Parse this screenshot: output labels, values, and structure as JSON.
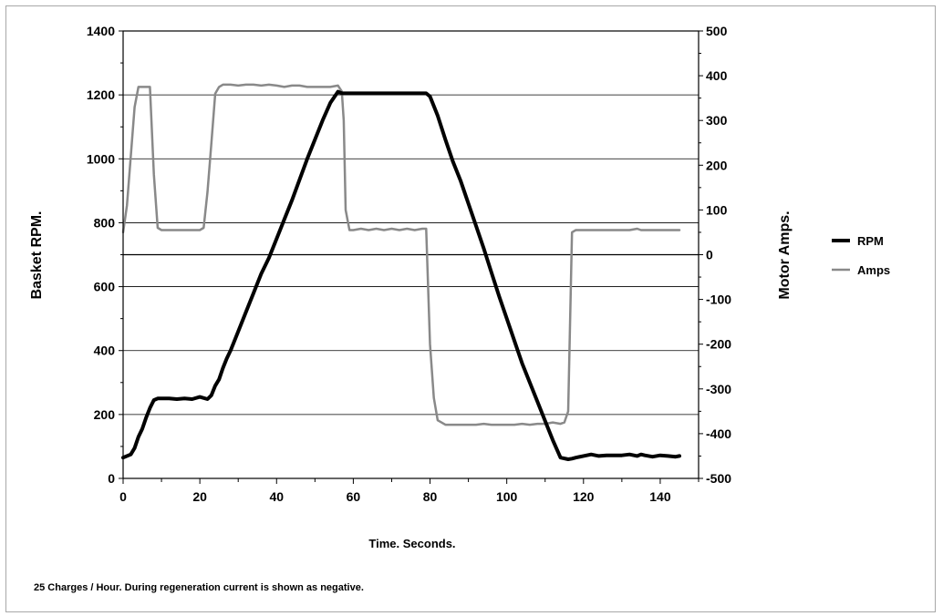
{
  "chart_data": {
    "type": "line",
    "xlabel": "Time. Seconds.",
    "ylabel_left": "Basket RPM.",
    "ylabel_right": "Motor Amps.",
    "footnote": "25 Charges / Hour. During regeneration current is shown as negative.",
    "xlim": [
      0,
      150
    ],
    "ylim_left": [
      0,
      1400
    ],
    "ylim_right": [
      -500,
      500
    ],
    "x_ticks": [
      0,
      20,
      40,
      60,
      80,
      100,
      120,
      140
    ],
    "y_ticks_left": [
      0,
      200,
      400,
      600,
      800,
      1000,
      1200,
      1400
    ],
    "y_ticks_right": [
      -500,
      -400,
      -300,
      -200,
      -100,
      0,
      100,
      200,
      300,
      400,
      500
    ],
    "grid": true,
    "legend_position": "right",
    "series": [
      {
        "name": "RPM",
        "axis": "left",
        "color": "#000000",
        "x": [
          0,
          2,
          3,
          4,
          5,
          6,
          7,
          8,
          9,
          10,
          12,
          14,
          16,
          18,
          20,
          22,
          23,
          24,
          25,
          26,
          27,
          28,
          30,
          32,
          34,
          36,
          38,
          40,
          42,
          44,
          46,
          48,
          50,
          52,
          54,
          56,
          57,
          58,
          60,
          62,
          64,
          66,
          68,
          70,
          72,
          74,
          76,
          78,
          79,
          80,
          82,
          84,
          86,
          88,
          90,
          92,
          94,
          96,
          98,
          100,
          102,
          104,
          106,
          108,
          110,
          112,
          114,
          116,
          117,
          118,
          120,
          122,
          124,
          126,
          128,
          130,
          132,
          134,
          135,
          136,
          138,
          140,
          142,
          144,
          145
        ],
        "values": [
          65,
          75,
          95,
          130,
          155,
          190,
          220,
          245,
          250,
          250,
          250,
          248,
          250,
          248,
          255,
          248,
          260,
          290,
          310,
          345,
          375,
          400,
          460,
          520,
          580,
          640,
          690,
          750,
          810,
          870,
          935,
          1000,
          1060,
          1120,
          1175,
          1210,
          1205,
          1205,
          1205,
          1205,
          1205,
          1205,
          1205,
          1205,
          1205,
          1205,
          1205,
          1205,
          1205,
          1195,
          1135,
          1060,
          990,
          930,
          860,
          790,
          720,
          645,
          570,
          500,
          430,
          360,
          300,
          240,
          180,
          120,
          65,
          60,
          62,
          65,
          70,
          75,
          70,
          72,
          72,
          72,
          75,
          70,
          75,
          72,
          68,
          72,
          70,
          68,
          70
        ]
      },
      {
        "name": "Amps",
        "axis": "right",
        "color": "#898989",
        "x": [
          0,
          1,
          2,
          3,
          4,
          5,
          6,
          7,
          8,
          9,
          10,
          11,
          12,
          14,
          16,
          18,
          20,
          21,
          22,
          23,
          24,
          25,
          26,
          28,
          30,
          32,
          34,
          36,
          38,
          40,
          42,
          44,
          46,
          48,
          50,
          52,
          54,
          56,
          57,
          57.5,
          58,
          59,
          60,
          62,
          64,
          66,
          68,
          70,
          72,
          74,
          76,
          78,
          79,
          80,
          81,
          82,
          84,
          86,
          88,
          90,
          92,
          94,
          96,
          98,
          100,
          102,
          104,
          106,
          108,
          110,
          112,
          114,
          115,
          116,
          117,
          118,
          120,
          122,
          124,
          126,
          128,
          130,
          132,
          134,
          135,
          136,
          138,
          140,
          142,
          144,
          145
        ],
        "values": [
          50,
          110,
          220,
          330,
          375,
          375,
          375,
          375,
          180,
          60,
          55,
          55,
          55,
          55,
          55,
          55,
          55,
          60,
          140,
          250,
          360,
          375,
          380,
          380,
          378,
          380,
          380,
          378,
          380,
          378,
          375,
          378,
          378,
          375,
          375,
          375,
          375,
          378,
          365,
          300,
          100,
          55,
          55,
          58,
          55,
          58,
          55,
          58,
          55,
          58,
          55,
          58,
          58,
          -200,
          -320,
          -370,
          -380,
          -380,
          -380,
          -380,
          -380,
          -378,
          -380,
          -380,
          -380,
          -380,
          -378,
          -380,
          -378,
          -378,
          -375,
          -378,
          -375,
          -350,
          50,
          55,
          55,
          55,
          55,
          55,
          55,
          55,
          55,
          58,
          55,
          55,
          55,
          55,
          55,
          55,
          55
        ]
      }
    ]
  }
}
